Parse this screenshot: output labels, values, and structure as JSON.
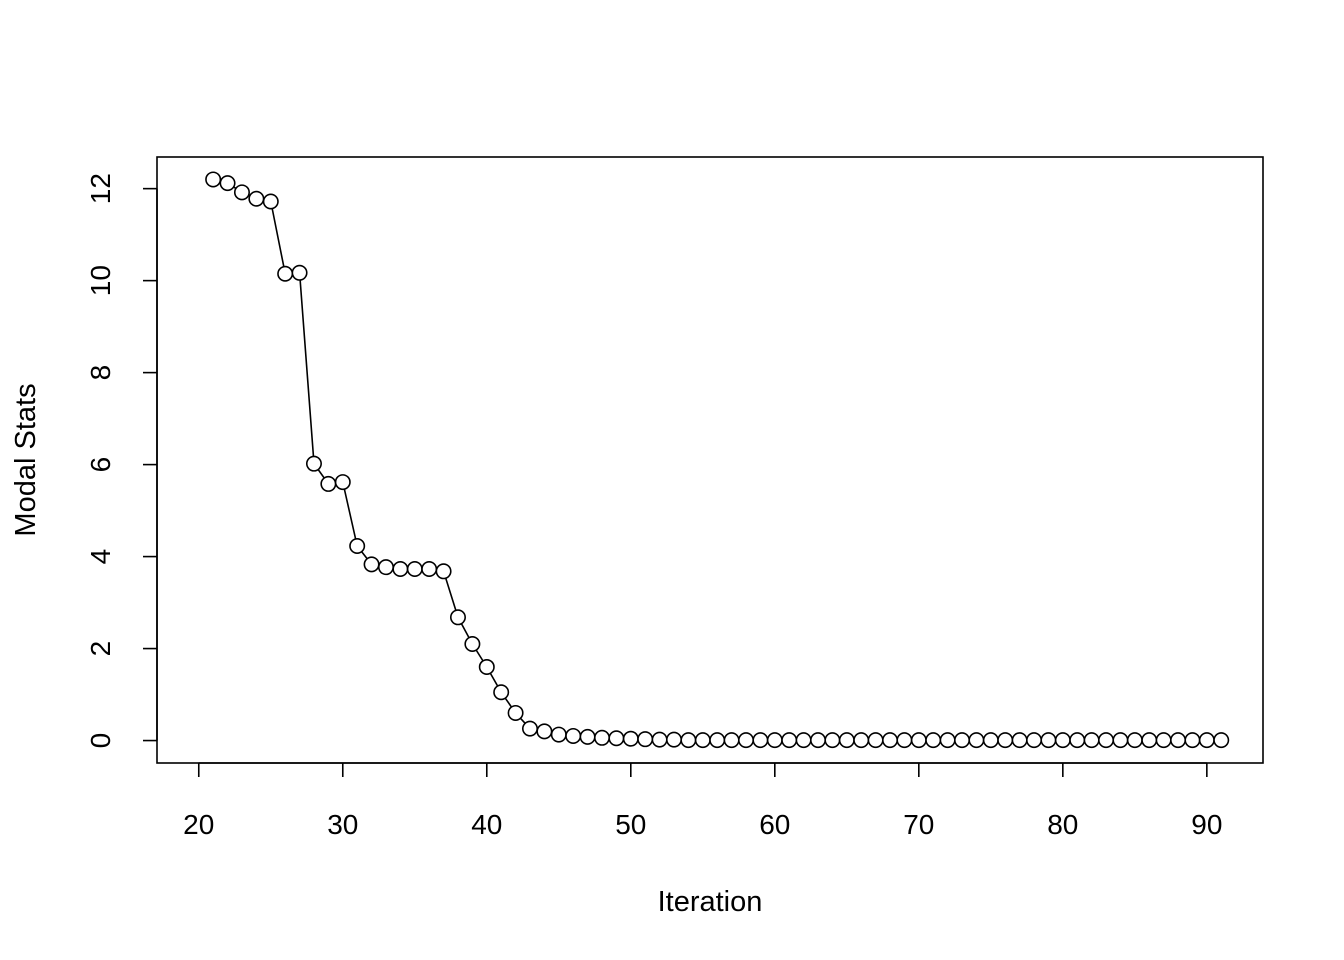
{
  "chart_data": {
    "type": "line",
    "title": "",
    "xlabel": "Iteration",
    "ylabel": "Modal Stats",
    "xlim": [
      17.1,
      93.9
    ],
    "ylim": [
      -0.488,
      12.688
    ],
    "xticks": [
      20,
      30,
      40,
      50,
      60,
      70,
      80,
      90
    ],
    "yticks": [
      0,
      2,
      4,
      6,
      8,
      10,
      12
    ],
    "grid": false,
    "legend": "none",
    "marker": "open-circle",
    "line_color": "#000000",
    "series": [
      {
        "x": [
          21,
          22,
          23,
          24,
          25,
          26,
          27,
          28,
          29,
          30,
          31,
          32,
          33,
          34,
          35,
          36,
          37,
          38,
          39,
          40,
          41,
          42,
          43,
          44,
          45,
          46,
          47,
          48,
          49,
          50,
          51,
          52,
          53,
          54,
          55,
          56,
          57,
          58,
          59,
          60,
          61,
          62,
          63,
          64,
          65,
          66,
          67,
          68,
          69,
          70,
          71,
          72,
          73,
          74,
          75,
          76,
          77,
          78,
          79,
          80,
          81,
          82,
          83,
          84,
          85,
          86,
          87,
          88,
          89,
          90,
          91
        ],
        "values": [
          12.2,
          12.12,
          11.92,
          11.78,
          11.72,
          10.15,
          10.17,
          6.02,
          5.58,
          5.62,
          4.23,
          3.83,
          3.77,
          3.73,
          3.73,
          3.73,
          3.68,
          2.68,
          2.1,
          1.6,
          1.05,
          0.6,
          0.26,
          0.2,
          0.13,
          0.1,
          0.08,
          0.06,
          0.05,
          0.04,
          0.03,
          0.02,
          0.02,
          0.01,
          0.01,
          0.01,
          0.01,
          0.01,
          0.01,
          0.01,
          0.01,
          0.01,
          0.01,
          0.01,
          0.01,
          0.01,
          0.01,
          0.01,
          0.01,
          0.01,
          0.01,
          0.01,
          0.01,
          0.01,
          0.01,
          0.01,
          0.01,
          0.01,
          0.01,
          0.01,
          0.01,
          0.01,
          0.01,
          0.01,
          0.01,
          0.01,
          0.01,
          0.01,
          0.01,
          0.01,
          0.01
        ]
      }
    ]
  }
}
